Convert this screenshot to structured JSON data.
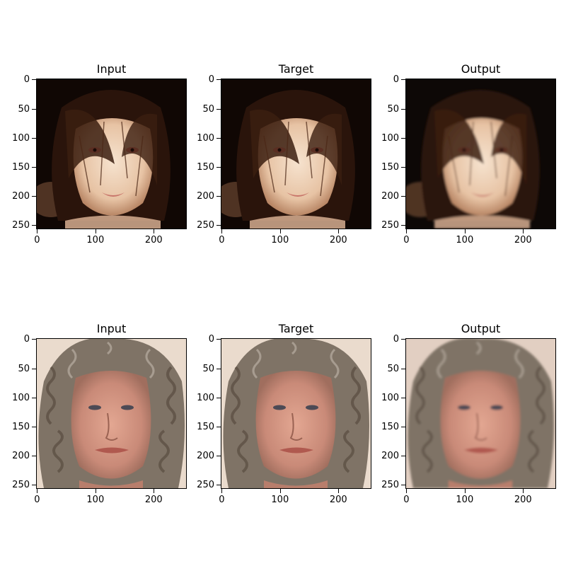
{
  "rows": [
    {
      "panels": [
        {
          "title": "Input",
          "image": "young-woman-dark-hair-face"
        },
        {
          "title": "Target",
          "image": "young-woman-dark-hair-face"
        },
        {
          "title": "Output",
          "image": "young-woman-dark-hair-face-reconstruction"
        }
      ]
    },
    {
      "panels": [
        {
          "title": "Input",
          "image": "older-woman-curly-gray-hair-face"
        },
        {
          "title": "Target",
          "image": "older-woman-curly-gray-hair-face"
        },
        {
          "title": "Output",
          "image": "older-woman-curly-gray-hair-face-reconstruction"
        }
      ]
    }
  ],
  "axes": {
    "yticks": [
      "0",
      "50",
      "100",
      "150",
      "200",
      "250"
    ],
    "xticks": [
      "0",
      "100",
      "200"
    ]
  }
}
